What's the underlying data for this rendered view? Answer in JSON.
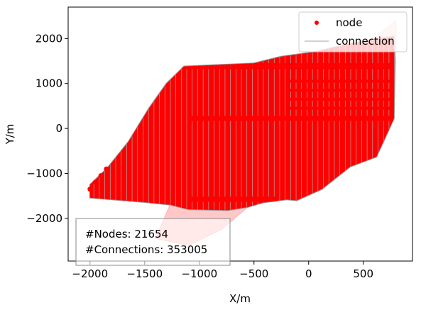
{
  "chart_data": {
    "type": "scatter",
    "title": "",
    "xlabel": "X/m",
    "ylabel": "Y/m",
    "xlim": [
      -2200,
      950
    ],
    "ylim": [
      -2950,
      2700
    ],
    "xticks": [
      -2000,
      -1500,
      -1000,
      -500,
      0,
      500
    ],
    "xtick_labels": [
      "−2000",
      "−1500",
      "−1000",
      "−500",
      "0",
      "500"
    ],
    "yticks": [
      -2000,
      -1000,
      0,
      1000,
      2000
    ],
    "ytick_labels": [
      "−2000",
      "−1000",
      "0",
      "1000",
      "2000"
    ],
    "grid": false,
    "legend_position": "top-right",
    "series": [
      {
        "name": "node",
        "color": "#ff0000",
        "marker": "point"
      },
      {
        "name": "connection",
        "color": "#999999",
        "marker": "line"
      }
    ],
    "node_columns_x": [
      -1990,
      -1940,
      -1890,
      -1840,
      -1790,
      -1740,
      -1690,
      -1640,
      -1590,
      -1540,
      -1490,
      -1440,
      -1390,
      -1340,
      -1290,
      -1240,
      -1190,
      -1140,
      -1090,
      -1040,
      -990,
      -940,
      -890,
      -840,
      -790,
      -740,
      -690,
      -640,
      -590,
      -540,
      -490,
      -440,
      -390,
      -340,
      -290,
      -240,
      -190,
      -140,
      -90,
      -40,
      10,
      60,
      110,
      160,
      210,
      260,
      310,
      360,
      410,
      460,
      510,
      560,
      610,
      660,
      710,
      760
    ],
    "region_outline": [
      [
        -2000,
        -1250
      ],
      [
        -1840,
        -880
      ],
      [
        -1650,
        -300
      ],
      [
        -1460,
        450
      ],
      [
        -1300,
        1000
      ],
      [
        -1140,
        1380
      ],
      [
        -500,
        1450
      ],
      [
        -250,
        1600
      ],
      [
        50,
        1700
      ],
      [
        400,
        1900
      ],
      [
        780,
        2050
      ],
      [
        790,
        1500
      ],
      [
        780,
        220
      ],
      [
        620,
        -630
      ],
      [
        380,
        -850
      ],
      [
        120,
        -1350
      ],
      [
        -110,
        -1600
      ],
      [
        -200,
        -1580
      ],
      [
        -420,
        -1650
      ],
      [
        -560,
        -1750
      ],
      [
        -740,
        -1820
      ],
      [
        -1100,
        -1800
      ],
      [
        -1260,
        -1700
      ],
      [
        -1500,
        -1640
      ],
      [
        -1700,
        -1600
      ],
      [
        -2000,
        -1540
      ]
    ],
    "faded_region_outline": [
      [
        -1260,
        -1650
      ],
      [
        -560,
        -1760
      ],
      [
        -800,
        -2250
      ],
      [
        -1100,
        -2600
      ],
      [
        -1400,
        -2450
      ]
    ],
    "faded_top_outline": [
      [
        540,
        1900
      ],
      [
        800,
        2400
      ],
      [
        800,
        1700
      ],
      [
        540,
        1500
      ]
    ],
    "stats": {
      "nodes_label": "#Nodes: 21654",
      "connections_label": "#Connections: 353005"
    }
  }
}
